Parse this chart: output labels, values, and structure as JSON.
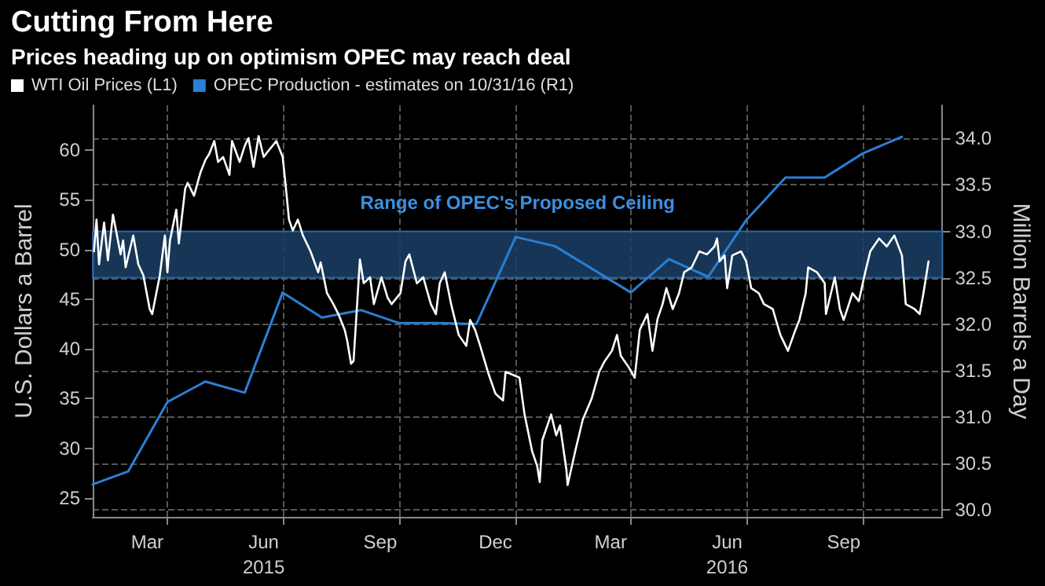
{
  "chart_data": {
    "type": "line",
    "title": "Cutting From Here",
    "subtitle": "Prices heading up on optimism OPEC may reach deal",
    "ylabel": "U.S. Dollars a Barrel",
    "y2label": "Million Barrels a Day",
    "legend": "top left",
    "grid": true,
    "marker": "none",
    "line_style": "solid",
    "xlim": [
      "2015-02-01",
      "2016-12-03"
    ],
    "xticks": [
      {
        "value": "2015-03-16",
        "label": "Mar"
      },
      {
        "value": "2015-04-01",
        "label": null
      },
      {
        "value": "2015-06-16",
        "label": "Jun\n2015"
      },
      {
        "value": "2015-07-01",
        "label": null
      },
      {
        "value": "2015-09-16",
        "label": "Sep"
      },
      {
        "value": "2015-10-01",
        "label": null
      },
      {
        "value": "2015-12-16",
        "label": "Dec"
      },
      {
        "value": "2016-01-01",
        "label": null
      },
      {
        "value": "2016-03-16",
        "label": "Mar"
      },
      {
        "value": "2016-04-01",
        "label": null
      },
      {
        "value": "2016-06-16",
        "label": "Jun\n2016"
      },
      {
        "value": "2016-07-01",
        "label": null
      },
      {
        "value": "2016-09-16",
        "label": "Sep"
      },
      {
        "value": "2016-10-01",
        "label": null
      }
    ],
    "ylim": [
      23.1,
      64.5
    ],
    "yticks": [
      25,
      30,
      35,
      40,
      45,
      50,
      55,
      60
    ],
    "y2lim": [
      29.92,
      34.36
    ],
    "y2ticks": [
      {
        "value": 30,
        "label": "30.0"
      },
      30.5,
      {
        "value": 31,
        "label": "31.0"
      },
      31.5,
      {
        "value": 32,
        "label": "32.0"
      },
      32.5,
      {
        "value": 33,
        "label": "33.0"
      },
      33.5,
      {
        "value": 34,
        "label": "34.0"
      }
    ],
    "bands": [
      {
        "axis": "y2",
        "from": 32.5,
        "to": 33.0,
        "label": "Range of OPEC's Proposed Ceiling",
        "color": "#1b3f66"
      }
    ],
    "series": [
      {
        "name": "WTI Oil Prices (L1)",
        "color": "#ffffff",
        "x": [
          "2015-02-02",
          "2015-02-04",
          "2015-02-06",
          "2015-02-10",
          "2015-02-13",
          "2015-02-17",
          "2015-02-23",
          "2015-02-25",
          "2015-02-27",
          "2015-03-05",
          "2015-03-09",
          "2015-03-13",
          "2015-03-18",
          "2015-03-20",
          "2015-03-26",
          "2015-03-30",
          "2015-04-01",
          "2015-04-03",
          "2015-04-08",
          "2015-04-10",
          "2015-04-15",
          "2015-04-17",
          "2015-04-22",
          "2015-04-27",
          "2015-05-01",
          "2015-05-04",
          "2015-05-08",
          "2015-05-11",
          "2015-05-15",
          "2015-05-20",
          "2015-05-22",
          "2015-05-28",
          "2015-06-01",
          "2015-06-04",
          "2015-06-08",
          "2015-06-12",
          "2015-06-16",
          "2015-06-19",
          "2015-06-26",
          "2015-07-01",
          "2015-07-03",
          "2015-07-06",
          "2015-07-09",
          "2015-07-13",
          "2015-07-17",
          "2015-07-23",
          "2015-07-29",
          "2015-07-31",
          "2015-08-05",
          "2015-08-10",
          "2015-08-14",
          "2015-08-19",
          "2015-08-21",
          "2015-08-24",
          "2015-08-26",
          "2015-08-31",
          "2015-09-03",
          "2015-09-08",
          "2015-09-11",
          "2015-09-17",
          "2015-09-22",
          "2015-09-25",
          "2015-10-02",
          "2015-10-06",
          "2015-10-09",
          "2015-10-15",
          "2015-10-20",
          "2015-10-26",
          "2015-10-30",
          "2015-11-02",
          "2015-11-06",
          "2015-11-11",
          "2015-11-17",
          "2015-11-23",
          "2015-11-26",
          "2015-11-30",
          "2015-12-04",
          "2015-12-10",
          "2015-12-16",
          "2015-12-22",
          "2015-12-24",
          "2016-01-04",
          "2016-01-08",
          "2016-01-14",
          "2016-01-18",
          "2016-01-20",
          "2016-01-22",
          "2016-01-29",
          "2016-02-02",
          "2016-02-05",
          "2016-02-10",
          "2016-02-11",
          "2016-02-17",
          "2016-02-23",
          "2016-03-01",
          "2016-03-07",
          "2016-03-11",
          "2016-03-17",
          "2016-03-21",
          "2016-03-24",
          "2016-03-30",
          "2016-04-04",
          "2016-04-08",
          "2016-04-14",
          "2016-04-18",
          "2016-04-22",
          "2016-04-26",
          "2016-04-29",
          "2016-05-04",
          "2016-05-09",
          "2016-05-13",
          "2016-05-19",
          "2016-05-25",
          "2016-05-31",
          "2016-06-06",
          "2016-06-08",
          "2016-06-10",
          "2016-06-14",
          "2016-06-16",
          "2016-06-20",
          "2016-06-27",
          "2016-07-01",
          "2016-07-05",
          "2016-07-11",
          "2016-07-15",
          "2016-07-22",
          "2016-07-28",
          "2016-08-03",
          "2016-08-08",
          "2016-08-12",
          "2016-08-17",
          "2016-08-19",
          "2016-08-26",
          "2016-09-01",
          "2016-09-02",
          "2016-09-09",
          "2016-09-13",
          "2016-09-16",
          "2016-09-23",
          "2016-09-28",
          "2016-10-03",
          "2016-10-07",
          "2016-10-14",
          "2016-10-20",
          "2016-10-26",
          "2016-11-01",
          "2016-11-04",
          "2016-11-11",
          "2016-11-15",
          "2016-11-18",
          "2016-11-22"
        ],
        "values": [
          49.8,
          53,
          48.5,
          52.7,
          48.9,
          53.5,
          49.5,
          50.9,
          48.2,
          51.4,
          48.5,
          47.4,
          44,
          43.5,
          47.4,
          51.4,
          47.7,
          50.9,
          54,
          50.6,
          56.1,
          56.7,
          55.4,
          57.7,
          59,
          59.6,
          60.9,
          58.8,
          59.3,
          57.5,
          60.9,
          58.8,
          60.4,
          61.2,
          58.3,
          61.4,
          59.3,
          59.8,
          60.9,
          59.3,
          56.9,
          53,
          51.9,
          53,
          51.4,
          49.8,
          47.7,
          48.7,
          45.6,
          44.5,
          43.5,
          41.9,
          40.8,
          38.5,
          38.8,
          49,
          46.6,
          47.2,
          44.5,
          47.2,
          45.1,
          44.5,
          45.6,
          48.8,
          49.5,
          46.6,
          47.2,
          44.5,
          43.5,
          46.6,
          47.7,
          44.5,
          41.4,
          40.3,
          42.9,
          41.9,
          40.3,
          37.7,
          35.5,
          34.8,
          37.7,
          37.1,
          33.4,
          29.7,
          28.2,
          26.6,
          30.8,
          33.4,
          31.3,
          32.3,
          27.9,
          26.3,
          29.7,
          32.9,
          35,
          37.7,
          38.7,
          39.8,
          41.4,
          39.3,
          38.2,
          37.1,
          41.9,
          43.5,
          39.8,
          43,
          44.5,
          46.1,
          44,
          45.6,
          47.7,
          48.2,
          49.8,
          49.5,
          50.3,
          51.1,
          48.8,
          49.4,
          46.1,
          49.4,
          49.8,
          48.8,
          46.1,
          45.6,
          44.5,
          44,
          41.4,
          39.8,
          41.6,
          42.9,
          45.6,
          48.2,
          47.7,
          46.6,
          43.5,
          47.2,
          44,
          42.9,
          45.6,
          44.8,
          47.7,
          49.8,
          51.1,
          50.3,
          51.4,
          49.4,
          44.5,
          44,
          43.5,
          45.6,
          48.8
        ]
      },
      {
        "name": "OPEC Production - estimates on 10/31/16 (R1)",
        "color": "#2b7fd4",
        "axis": "y2",
        "x": [
          "2015-02-01",
          "2015-03-01",
          "2015-04-01",
          "2015-05-01",
          "2015-06-01",
          "2015-07-01",
          "2015-08-01",
          "2015-09-01",
          "2015-10-01",
          "2015-11-01",
          "2015-12-01",
          "2016-01-01",
          "2016-02-01",
          "2016-04-01",
          "2016-05-01",
          "2016-06-01",
          "2016-07-01",
          "2016-08-01",
          "2016-09-01",
          "2016-10-01",
          "2016-11-01"
        ],
        "values": [
          30.27,
          30.41,
          31.16,
          31.38,
          31.26,
          32.34,
          32.07,
          32.15,
          32.01,
          32.01,
          32.0,
          32.94,
          32.84,
          32.34,
          32.7,
          32.51,
          33.12,
          33.58,
          33.58,
          33.84,
          34.02
        ]
      }
    ]
  }
}
